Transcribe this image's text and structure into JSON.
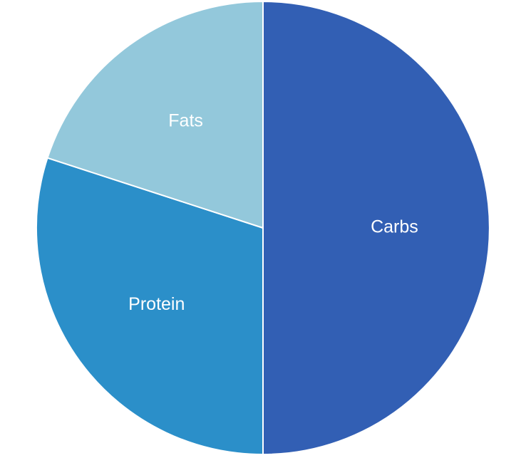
{
  "chart_data": {
    "type": "pie",
    "title": "",
    "slices": [
      {
        "label": "Carbs",
        "value": 50,
        "color": "#325FB4"
      },
      {
        "label": "Protein",
        "value": 30,
        "color": "#2B8FC9"
      },
      {
        "label": "Fats",
        "value": 20,
        "color": "#93C8DB"
      }
    ],
    "start": "12 o'clock",
    "direction": "clockwise",
    "slice_border_color": "#ffffff",
    "legend": "none"
  }
}
